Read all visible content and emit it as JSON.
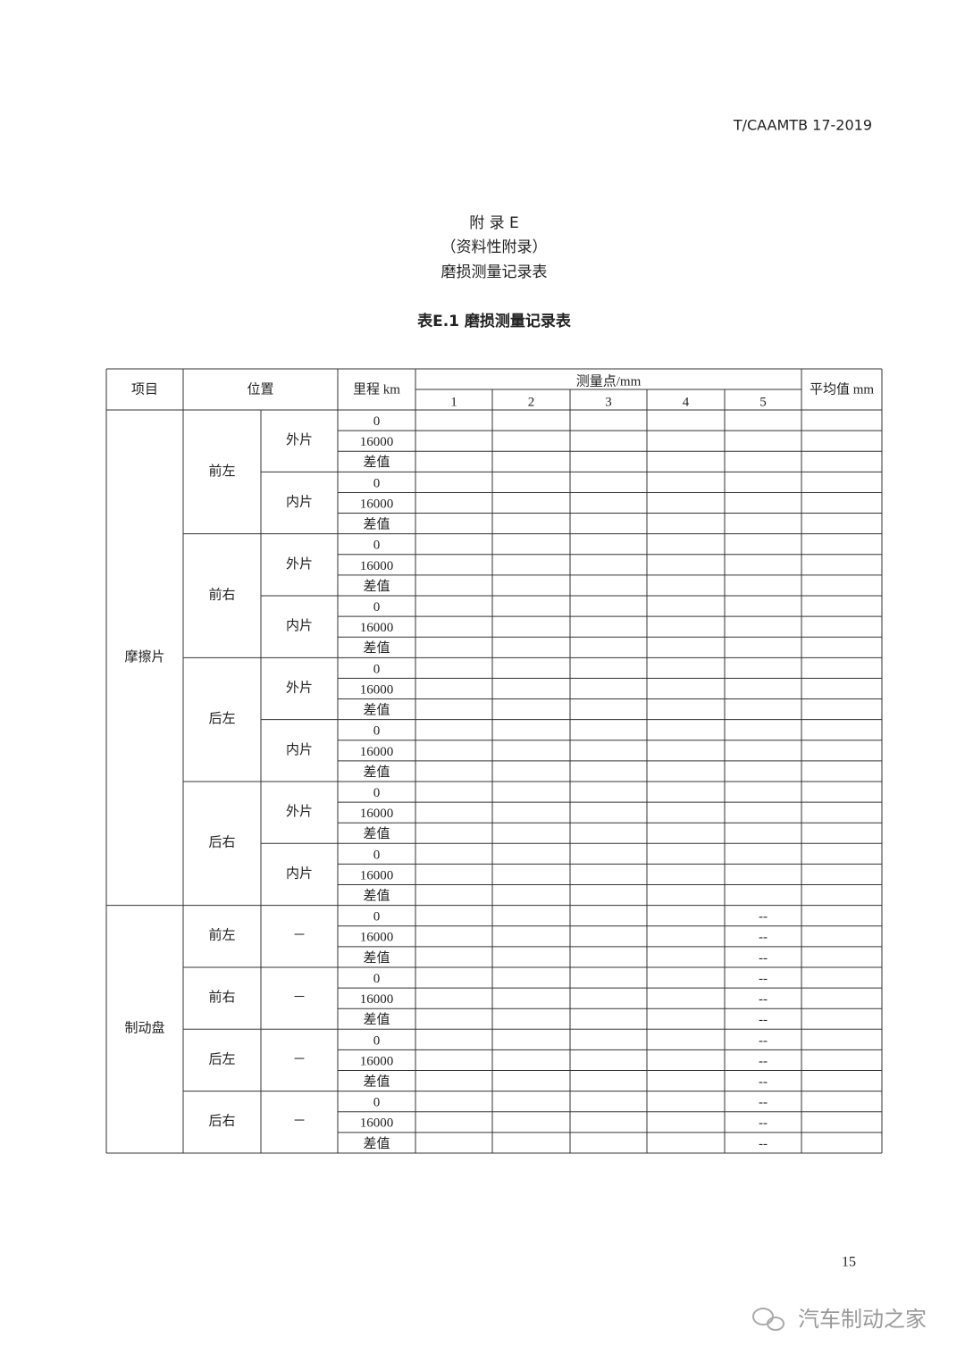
{
  "header": {
    "code": "T/CAAMTB 17-2019"
  },
  "appendix": {
    "title": "附 录 E",
    "type": "（资料性附录）",
    "name": "磨损测量记录表"
  },
  "table": {
    "caption": "表E.1 磨损测量记录表",
    "headers": {
      "item": "项目",
      "position": "位置",
      "mileage": "里程 km",
      "points": "测量点/mm",
      "point_numbers": [
        "1",
        "2",
        "3",
        "4",
        "5"
      ],
      "average": "平均值 mm"
    },
    "friction": {
      "item": "摩擦片",
      "positions": [
        {
          "name": "前左",
          "sides": [
            {
              "name": "外片",
              "rows": [
                "0",
                "16000",
                "差值"
              ]
            },
            {
              "name": "内片",
              "rows": [
                "0",
                "16000",
                "差值"
              ]
            }
          ]
        },
        {
          "name": "前右",
          "sides": [
            {
              "name": "外片",
              "rows": [
                "0",
                "16000",
                "差值"
              ]
            },
            {
              "name": "内片",
              "rows": [
                "0",
                "16000",
                "差值"
              ]
            }
          ]
        },
        {
          "name": "后左",
          "sides": [
            {
              "name": "外片",
              "rows": [
                "0",
                "16000",
                "差值"
              ]
            },
            {
              "name": "内片",
              "rows": [
                "0",
                "16000",
                "差值"
              ]
            }
          ]
        },
        {
          "name": "后右",
          "sides": [
            {
              "name": "外片",
              "rows": [
                "0",
                "16000",
                "差值"
              ]
            },
            {
              "name": "内片",
              "rows": [
                "0",
                "16000",
                "差值"
              ]
            }
          ]
        }
      ]
    },
    "disc": {
      "item": "制动盘",
      "positions": [
        {
          "name": "前左",
          "side": "－",
          "rows": [
            "0",
            "16000",
            "差值"
          ],
          "point5": [
            "--",
            "--",
            "--"
          ]
        },
        {
          "name": "前右",
          "side": "－",
          "rows": [
            "0",
            "16000",
            "差值"
          ],
          "point5": [
            "--",
            "--",
            "--"
          ]
        },
        {
          "name": "后左",
          "side": "－",
          "rows": [
            "0",
            "16000",
            "差值"
          ],
          "point5": [
            "--",
            "--",
            "--"
          ]
        },
        {
          "name": "后右",
          "side": "－",
          "rows": [
            "0",
            "16000",
            "差值"
          ],
          "point5": [
            "--",
            "--",
            "--"
          ]
        }
      ]
    }
  },
  "page_number": "15",
  "watermark": "汽车制动之家"
}
